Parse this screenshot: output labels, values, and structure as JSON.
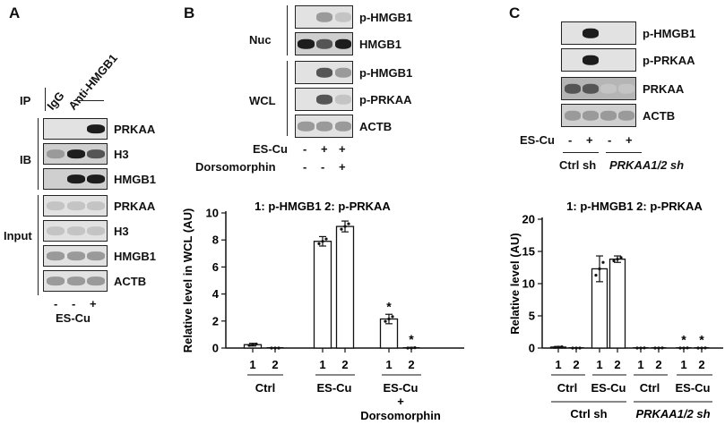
{
  "panel_a": {
    "letter": "A",
    "ip_label": "IP",
    "ip_igg": "IgG",
    "ip_anti": "Anti-HMGB1",
    "ib_label": "IB",
    "input_label": "Input",
    "ib_rows": [
      "PRKAA",
      "H3",
      "HMGB1"
    ],
    "input_rows": [
      "PRKAA",
      "H3",
      "HMGB1",
      "ACTB"
    ],
    "treatment_signs": [
      "-",
      "-",
      "+"
    ],
    "treatment_label": "ES-Cu"
  },
  "panel_b": {
    "letter": "B",
    "nuc_label": "Nuc",
    "wcl_label": "WCL",
    "nuc_rows": [
      "p-HMGB1",
      "HMGB1"
    ],
    "wcl_rows": [
      "p-HMGB1",
      "p-PRKAA",
      "ACTB"
    ],
    "escu_label": "ES-Cu",
    "escu_signs": [
      "-",
      "+",
      "+"
    ],
    "dorso_label": "Dorsomorphin",
    "dorso_signs": [
      "-",
      "-",
      "+"
    ]
  },
  "panel_c": {
    "letter": "C",
    "rows": [
      "p-HMGB1",
      "p-PRKAA",
      "PRKAA",
      "ACTB"
    ],
    "escu_label": "ES-Cu",
    "escu_signs": [
      "-",
      "+",
      "-",
      "+"
    ],
    "group_ctrl_sh": "Ctrl sh",
    "group_prkaa_sh": "PRKAA1/2 sh"
  },
  "chart_data": [
    {
      "type": "bar",
      "title": "1: p-HMGB1  2: p-PRKAA",
      "ylabel": "Relative level in WCL (AU)",
      "ylim": [
        0,
        10
      ],
      "yticks": [
        0,
        2,
        4,
        6,
        8,
        10
      ],
      "bar_labels": [
        "1",
        "2",
        "1",
        "2",
        "1",
        "2"
      ],
      "groups": [
        "Ctrl",
        "ES-Cu",
        "ES-Cu",
        "+",
        "Dorsomorphin"
      ],
      "values": [
        0.25,
        0.0,
        7.9,
        9.0,
        2.15,
        0.0
      ],
      "errors": [
        0.1,
        0.0,
        0.35,
        0.4,
        0.35,
        0.05
      ],
      "significance": [
        "",
        "",
        "",
        "",
        "*",
        "*"
      ]
    },
    {
      "type": "bar",
      "title": "1: p-HMGB1  2: p-PRKAA",
      "ylabel": "Relative level (AU)",
      "ylim": [
        0,
        20
      ],
      "yticks": [
        0,
        5,
        10,
        15,
        20
      ],
      "bar_labels": [
        "1",
        "2",
        "1",
        "2",
        "1",
        "2",
        "1",
        "2"
      ],
      "groups": [
        "Ctrl",
        "ES-Cu",
        "Ctrl",
        "ES-Cu"
      ],
      "super_groups": [
        "Ctrl sh",
        "PRKAA1/2 sh"
      ],
      "values": [
        0.15,
        0.0,
        12.3,
        13.8,
        0.0,
        0.0,
        0.0,
        0.0
      ],
      "errors": [
        0.1,
        0.0,
        2.0,
        0.5,
        0.05,
        0.05,
        0.05,
        0.05
      ],
      "significance": [
        "",
        "",
        "",
        "",
        "",
        "",
        "*",
        "*"
      ]
    }
  ]
}
